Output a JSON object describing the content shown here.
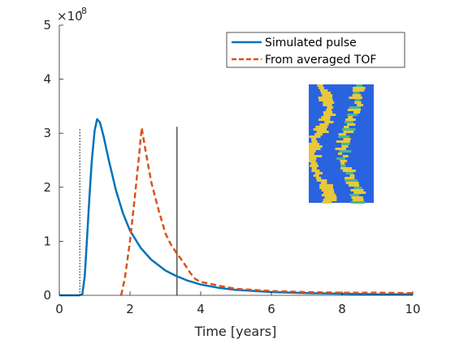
{
  "chart_data": {
    "type": "line",
    "xlabel": "Time [years]",
    "ylabel": "",
    "y_exponent_label": {
      "base": "×10",
      "power": "-8"
    },
    "xlim": [
      0,
      10
    ],
    "ylim": [
      0,
      5
    ],
    "x_ticks": [
      0,
      2,
      4,
      6,
      8,
      10
    ],
    "y_ticks": [
      0,
      1,
      2,
      3,
      4,
      5
    ],
    "grid": false,
    "legend_position": "top-right",
    "series": [
      {
        "name": "Simulated pulse",
        "color": "#0072BD",
        "dash": "solid",
        "points": [
          [
            0.0,
            0.0
          ],
          [
            0.55,
            0.0
          ],
          [
            0.65,
            0.02
          ],
          [
            0.72,
            0.35
          ],
          [
            0.78,
            1.0
          ],
          [
            0.85,
            1.8
          ],
          [
            0.92,
            2.5
          ],
          [
            1.0,
            3.05
          ],
          [
            1.07,
            3.26
          ],
          [
            1.15,
            3.2
          ],
          [
            1.25,
            2.95
          ],
          [
            1.4,
            2.5
          ],
          [
            1.6,
            1.95
          ],
          [
            1.8,
            1.52
          ],
          [
            2.0,
            1.2
          ],
          [
            2.3,
            0.88
          ],
          [
            2.6,
            0.66
          ],
          [
            3.0,
            0.46
          ],
          [
            3.3,
            0.36
          ],
          [
            3.6,
            0.28
          ],
          [
            4.0,
            0.2
          ],
          [
            4.5,
            0.14
          ],
          [
            5.0,
            0.1
          ],
          [
            6.0,
            0.06
          ],
          [
            7.0,
            0.04
          ],
          [
            8.0,
            0.03
          ],
          [
            9.0,
            0.02
          ],
          [
            10.0,
            0.02
          ]
        ]
      },
      {
        "name": "From averaged TOF",
        "color": "#D95319",
        "dash": "dashed",
        "points": [
          [
            1.75,
            0.0
          ],
          [
            1.85,
            0.3
          ],
          [
            2.0,
            1.0
          ],
          [
            2.15,
            1.9
          ],
          [
            2.25,
            2.55
          ],
          [
            2.33,
            3.1
          ],
          [
            2.42,
            2.75
          ],
          [
            2.6,
            2.1
          ],
          [
            2.8,
            1.6
          ],
          [
            3.0,
            1.15
          ],
          [
            3.15,
            0.95
          ],
          [
            3.3,
            0.8
          ],
          [
            3.5,
            0.62
          ],
          [
            3.7,
            0.42
          ],
          [
            3.85,
            0.3
          ],
          [
            4.0,
            0.25
          ],
          [
            4.5,
            0.18
          ],
          [
            5.0,
            0.12
          ],
          [
            5.5,
            0.1
          ],
          [
            6.0,
            0.08
          ],
          [
            7.0,
            0.06
          ],
          [
            8.0,
            0.05
          ],
          [
            9.0,
            0.05
          ],
          [
            10.0,
            0.04
          ]
        ]
      }
    ],
    "vertical_lines": [
      {
        "x": 0.58,
        "y_top": 3.08,
        "style": "dotted",
        "color": "#000000"
      },
      {
        "x": 3.33,
        "y_top": 3.12,
        "style": "solid",
        "color": "#000000"
      }
    ],
    "inset_image": {
      "description_icon": "velocity-field-inset",
      "base_color": "#2A63E0",
      "streak_color": "#E8C83A",
      "streak_alt_color": "#4CB88A"
    }
  }
}
